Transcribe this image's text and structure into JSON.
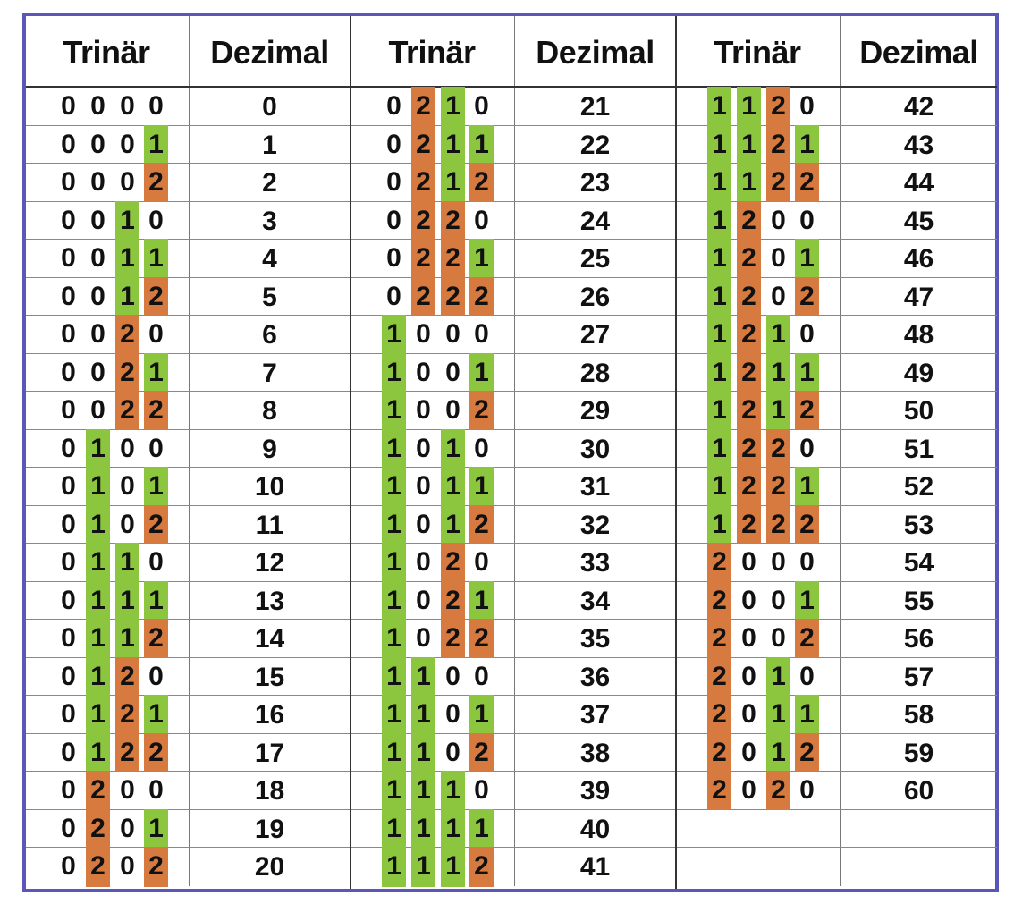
{
  "table": {
    "headers": {
      "trinary": "Trinär",
      "decimal": "Dezimal"
    },
    "colors": {
      "digit_1": "#8cc63e",
      "digit_2": "#d77a3f",
      "border": "#5b57b8"
    },
    "blocks": [
      {
        "rows": [
          {
            "trinary": "0000",
            "decimal": "0"
          },
          {
            "trinary": "0001",
            "decimal": "1"
          },
          {
            "trinary": "0002",
            "decimal": "2"
          },
          {
            "trinary": "0010",
            "decimal": "3"
          },
          {
            "trinary": "0011",
            "decimal": "4"
          },
          {
            "trinary": "0012",
            "decimal": "5"
          },
          {
            "trinary": "0020",
            "decimal": "6"
          },
          {
            "trinary": "0021",
            "decimal": "7"
          },
          {
            "trinary": "0022",
            "decimal": "8"
          },
          {
            "trinary": "0100",
            "decimal": "9"
          },
          {
            "trinary": "0101",
            "decimal": "10"
          },
          {
            "trinary": "0102",
            "decimal": "11"
          },
          {
            "trinary": "0110",
            "decimal": "12"
          },
          {
            "trinary": "0111",
            "decimal": "13"
          },
          {
            "trinary": "0112",
            "decimal": "14"
          },
          {
            "trinary": "0120",
            "decimal": "15"
          },
          {
            "trinary": "0121",
            "decimal": "16"
          },
          {
            "trinary": "0122",
            "decimal": "17"
          },
          {
            "trinary": "0200",
            "decimal": "18"
          },
          {
            "trinary": "0201",
            "decimal": "19"
          },
          {
            "trinary": "0202",
            "decimal": "20"
          }
        ]
      },
      {
        "rows": [
          {
            "trinary": "0210",
            "decimal": "21"
          },
          {
            "trinary": "0211",
            "decimal": "22"
          },
          {
            "trinary": "0212",
            "decimal": "23"
          },
          {
            "trinary": "0220",
            "decimal": "24"
          },
          {
            "trinary": "0221",
            "decimal": "25"
          },
          {
            "trinary": "0222",
            "decimal": "26"
          },
          {
            "trinary": "1000",
            "decimal": "27"
          },
          {
            "trinary": "1001",
            "decimal": "28"
          },
          {
            "trinary": "1002",
            "decimal": "29"
          },
          {
            "trinary": "1010",
            "decimal": "30"
          },
          {
            "trinary": "1011",
            "decimal": "31"
          },
          {
            "trinary": "1012",
            "decimal": "32"
          },
          {
            "trinary": "1020",
            "decimal": "33"
          },
          {
            "trinary": "1021",
            "decimal": "34"
          },
          {
            "trinary": "1022",
            "decimal": "35"
          },
          {
            "trinary": "1100",
            "decimal": "36"
          },
          {
            "trinary": "1101",
            "decimal": "37"
          },
          {
            "trinary": "1102",
            "decimal": "38"
          },
          {
            "trinary": "1110",
            "decimal": "39"
          },
          {
            "trinary": "1111",
            "decimal": "40"
          },
          {
            "trinary": "1112",
            "decimal": "41"
          }
        ]
      },
      {
        "rows": [
          {
            "trinary": "1120",
            "decimal": "42"
          },
          {
            "trinary": "1121",
            "decimal": "43"
          },
          {
            "trinary": "1122",
            "decimal": "44"
          },
          {
            "trinary": "1200",
            "decimal": "45"
          },
          {
            "trinary": "1201",
            "decimal": "46"
          },
          {
            "trinary": "1202",
            "decimal": "47"
          },
          {
            "trinary": "1210",
            "decimal": "48"
          },
          {
            "trinary": "1211",
            "decimal": "49"
          },
          {
            "trinary": "1212",
            "decimal": "50"
          },
          {
            "trinary": "1220",
            "decimal": "51"
          },
          {
            "trinary": "1221",
            "decimal": "52"
          },
          {
            "trinary": "1222",
            "decimal": "53"
          },
          {
            "trinary": "2000",
            "decimal": "54"
          },
          {
            "trinary": "2001",
            "decimal": "55"
          },
          {
            "trinary": "2002",
            "decimal": "56"
          },
          {
            "trinary": "2010",
            "decimal": "57"
          },
          {
            "trinary": "2011",
            "decimal": "58"
          },
          {
            "trinary": "2012",
            "decimal": "59"
          },
          {
            "trinary": "2020",
            "decimal": "60"
          },
          {
            "trinary": "",
            "decimal": ""
          },
          {
            "trinary": "",
            "decimal": ""
          }
        ]
      }
    ]
  }
}
